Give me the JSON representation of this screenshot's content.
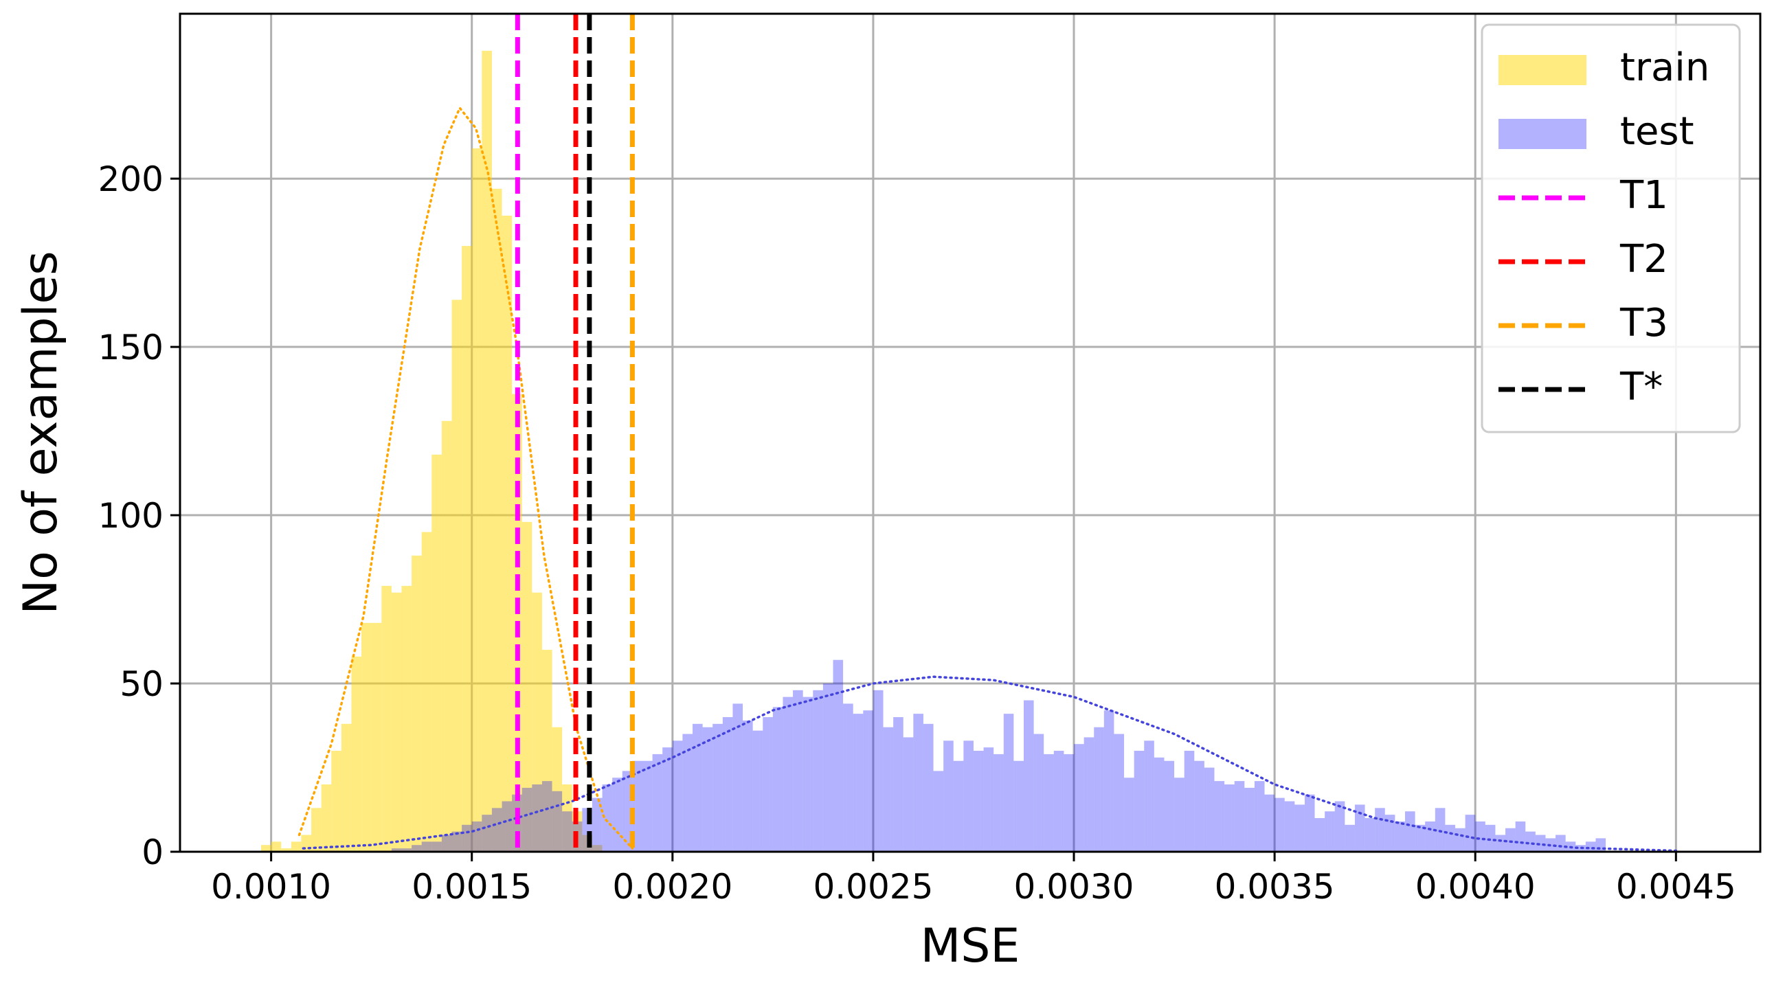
{
  "chart_data": {
    "type": "histogram",
    "xlabel": "MSE",
    "ylabel": "No of examples",
    "xlim": [
      0.000773,
      0.00471
    ],
    "ylim": [
      0,
      249
    ],
    "xticks": [
      {
        "value": 0.001,
        "label": "0.0010"
      },
      {
        "value": 0.0015,
        "label": "0.0015"
      },
      {
        "value": 0.002,
        "label": "0.0020"
      },
      {
        "value": 0.0025,
        "label": "0.0025"
      },
      {
        "value": 0.003,
        "label": "0.0030"
      },
      {
        "value": 0.0035,
        "label": "0.0035"
      },
      {
        "value": 0.004,
        "label": "0.0040"
      },
      {
        "value": 0.0045,
        "label": "0.0045"
      }
    ],
    "yticks": [
      0,
      50,
      100,
      150,
      200
    ],
    "grid": true,
    "legend": "upper right",
    "series": [
      {
        "name": "train",
        "color": "#ffd700",
        "alpha": 0.5,
        "bins": [
          0.000975,
          0.001,
          0.001025,
          0.00105,
          0.001075,
          0.0011,
          0.001125,
          0.00115,
          0.001175,
          0.0012,
          0.001225,
          0.00125,
          0.001275,
          0.0013,
          0.001325,
          0.00135,
          0.001375,
          0.0014,
          0.001425,
          0.00145,
          0.001475,
          0.0015,
          0.001525,
          0.00155,
          0.001575,
          0.0016,
          0.001625,
          0.00165,
          0.001675,
          0.0017,
          0.001725,
          0.00175,
          0.001775,
          0.0018,
          0.001825
        ],
        "values": [
          2,
          3,
          1,
          3,
          5,
          13,
          20,
          30,
          38,
          58,
          68,
          68,
          79,
          77,
          79,
          88,
          95,
          118,
          128,
          164,
          180,
          209,
          238,
          197,
          189,
          136,
          98,
          77,
          60,
          37,
          20,
          12,
          5,
          2
        ]
      },
      {
        "name": "test",
        "color": "#0000ff",
        "alpha": 0.3,
        "bins": [
          0.0013,
          0.001325,
          0.00135,
          0.001375,
          0.0014,
          0.001425,
          0.00145,
          0.001475,
          0.0015,
          0.001525,
          0.00155,
          0.001575,
          0.0016,
          0.001625,
          0.00165,
          0.001675,
          0.0017,
          0.001725,
          0.00175,
          0.001775,
          0.0018,
          0.001825,
          0.00185,
          0.001875,
          0.0019,
          0.001925,
          0.00195,
          0.001975,
          0.002,
          0.002025,
          0.00205,
          0.002075,
          0.0021,
          0.002125,
          0.00215,
          0.002175,
          0.0022,
          0.002225,
          0.00225,
          0.002275,
          0.0023,
          0.002325,
          0.00235,
          0.002375,
          0.0024,
          0.002425,
          0.00245,
          0.002475,
          0.0025,
          0.002525,
          0.00255,
          0.002575,
          0.0026,
          0.002625,
          0.00265,
          0.002675,
          0.0027,
          0.002725,
          0.00275,
          0.002775,
          0.0028,
          0.002825,
          0.00285,
          0.002875,
          0.0029,
          0.002925,
          0.00295,
          0.002975,
          0.003,
          0.003025,
          0.00305,
          0.003075,
          0.0031,
          0.003125,
          0.00315,
          0.003175,
          0.0032,
          0.003225,
          0.00325,
          0.003275,
          0.0033,
          0.003325,
          0.00335,
          0.003375,
          0.0034,
          0.003425,
          0.00345,
          0.003475,
          0.0035,
          0.003525,
          0.00355,
          0.003575,
          0.0036,
          0.003625,
          0.00365,
          0.003675,
          0.0037,
          0.003725,
          0.00375,
          0.003775,
          0.0038,
          0.003825,
          0.00385,
          0.003875,
          0.0039,
          0.003925,
          0.00395,
          0.003975,
          0.004,
          0.004025,
          0.00405,
          0.004075,
          0.0041,
          0.004125,
          0.00415,
          0.004175,
          0.0042,
          0.004225,
          0.00425,
          0.004275,
          0.0043,
          0.004325
        ],
        "values": [
          1,
          1,
          2,
          3,
          3,
          5,
          6,
          8,
          9,
          11,
          13,
          15,
          17,
          19,
          20,
          21,
          18,
          12,
          9,
          13,
          16,
          20,
          22,
          24,
          27,
          27,
          29,
          31,
          33,
          35,
          38,
          37,
          38,
          40,
          44,
          39,
          36,
          40,
          43,
          46,
          48,
          46,
          48,
          50,
          57,
          44,
          41,
          42,
          48,
          37,
          40,
          34,
          41,
          38,
          24,
          33,
          27,
          33,
          30,
          31,
          29,
          41,
          27,
          45,
          35,
          29,
          30,
          29,
          32,
          34,
          37,
          42,
          35,
          22,
          30,
          33,
          28,
          27,
          22,
          30,
          27,
          25,
          21,
          20,
          21,
          19,
          21,
          17,
          16,
          15,
          14,
          17,
          10,
          12,
          15,
          8,
          14,
          10,
          13,
          11,
          9,
          12,
          8,
          9,
          13,
          8,
          7,
          11,
          9,
          8,
          5,
          7,
          9,
          6,
          5,
          4,
          5,
          3,
          2,
          3,
          4
        ]
      }
    ],
    "fit_curves": [
      {
        "color": "#ffa500",
        "x": [
          0.00107,
          0.00115,
          0.00123,
          0.00129,
          0.00137,
          0.00143,
          0.00147,
          0.00151,
          0.00154,
          0.00161,
          0.00168,
          0.00176,
          0.00183,
          0.0019
        ],
        "values": [
          5,
          32,
          70,
          118,
          179,
          210,
          221,
          215,
          202,
          152,
          88,
          37,
          10,
          1
        ]
      },
      {
        "color": "#4444dd",
        "x": [
          0.00108,
          0.00125,
          0.0015,
          0.00175,
          0.002,
          0.00225,
          0.0025,
          0.00265,
          0.0028,
          0.003,
          0.00325,
          0.0035,
          0.00375,
          0.004,
          0.00425,
          0.0045
        ],
        "values": [
          1,
          2,
          6,
          15,
          28,
          42,
          50,
          52,
          51,
          46,
          35,
          20,
          10,
          4,
          1.2,
          0.3
        ]
      }
    ],
    "thresholds": [
      {
        "name": "T1",
        "color": "#ff00ff",
        "value": 0.001614
      },
      {
        "name": "T2",
        "color": "#ff0000",
        "value": 0.001759
      },
      {
        "name": "T3",
        "color": "#ffa500",
        "value": 0.0019
      },
      {
        "name": "T*",
        "color": "#000000",
        "value": 0.001793
      }
    ]
  }
}
